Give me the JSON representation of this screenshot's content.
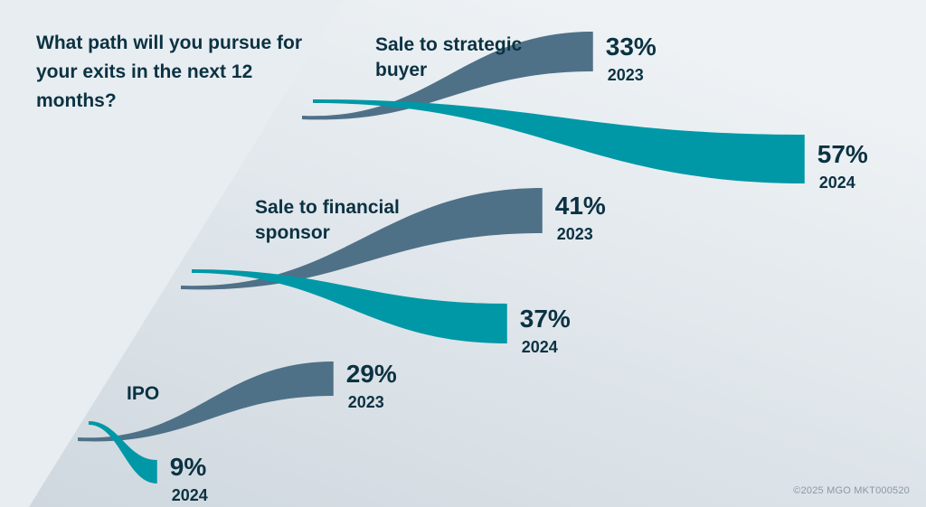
{
  "question": "What path will you pursue for your exits in the next 12 months?",
  "footer": "©2025 MGO MKT000520",
  "colors": {
    "background_light": "#eef2f5",
    "background_dark": "#cfd8df",
    "series_2023": "#4f7188",
    "series_2024": "#0098a6",
    "text": "#0b3242"
  },
  "chart_data": {
    "type": "bar",
    "categories": [
      "Sale to strategic buyer",
      "Sale to financial sponsor",
      "IPO"
    ],
    "series": [
      {
        "name": "2023",
        "values": [
          33,
          41,
          29
        ]
      },
      {
        "name": "2024",
        "values": [
          57,
          37,
          9
        ]
      }
    ],
    "value_suffix": "%"
  }
}
